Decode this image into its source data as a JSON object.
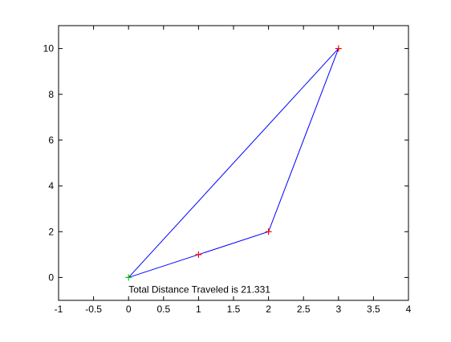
{
  "chart_data": {
    "type": "line",
    "title": "",
    "xlabel": "",
    "ylabel": "",
    "xlim": [
      -1,
      4
    ],
    "ylim": [
      -1,
      11
    ],
    "grid": false,
    "x_ticks": [
      -1,
      -0.5,
      0,
      0.5,
      1,
      1.5,
      2,
      2.5,
      3,
      3.5,
      4
    ],
    "x_tick_labels": [
      "-1",
      "-0.5",
      "0",
      "0.5",
      "1",
      "1.5",
      "2",
      "2.5",
      "3",
      "3.5",
      "4"
    ],
    "y_ticks": [
      0,
      2,
      4,
      6,
      8,
      10
    ],
    "y_tick_labels": [
      "0",
      "2",
      "4",
      "6",
      "8",
      "10"
    ],
    "series": [
      {
        "name": "path",
        "color": "#0000ff",
        "x": [
          0,
          1,
          2,
          3,
          0
        ],
        "y": [
          0,
          1,
          2,
          10,
          0
        ]
      }
    ],
    "markers": [
      {
        "name": "start",
        "x": 0,
        "y": 0,
        "symbol": "+",
        "color": "#00cc00"
      },
      {
        "name": "point-1",
        "x": 1,
        "y": 1,
        "symbol": "+",
        "color": "#ff0000"
      },
      {
        "name": "point-2",
        "x": 2,
        "y": 2,
        "symbol": "+",
        "color": "#ff0000"
      },
      {
        "name": "point-3",
        "x": 3,
        "y": 10,
        "symbol": "+",
        "color": "#ff0000"
      }
    ],
    "annotations": [
      {
        "text": "Total Distance Traveled is 21.331",
        "x": 0.0,
        "y": -0.5
      }
    ]
  }
}
